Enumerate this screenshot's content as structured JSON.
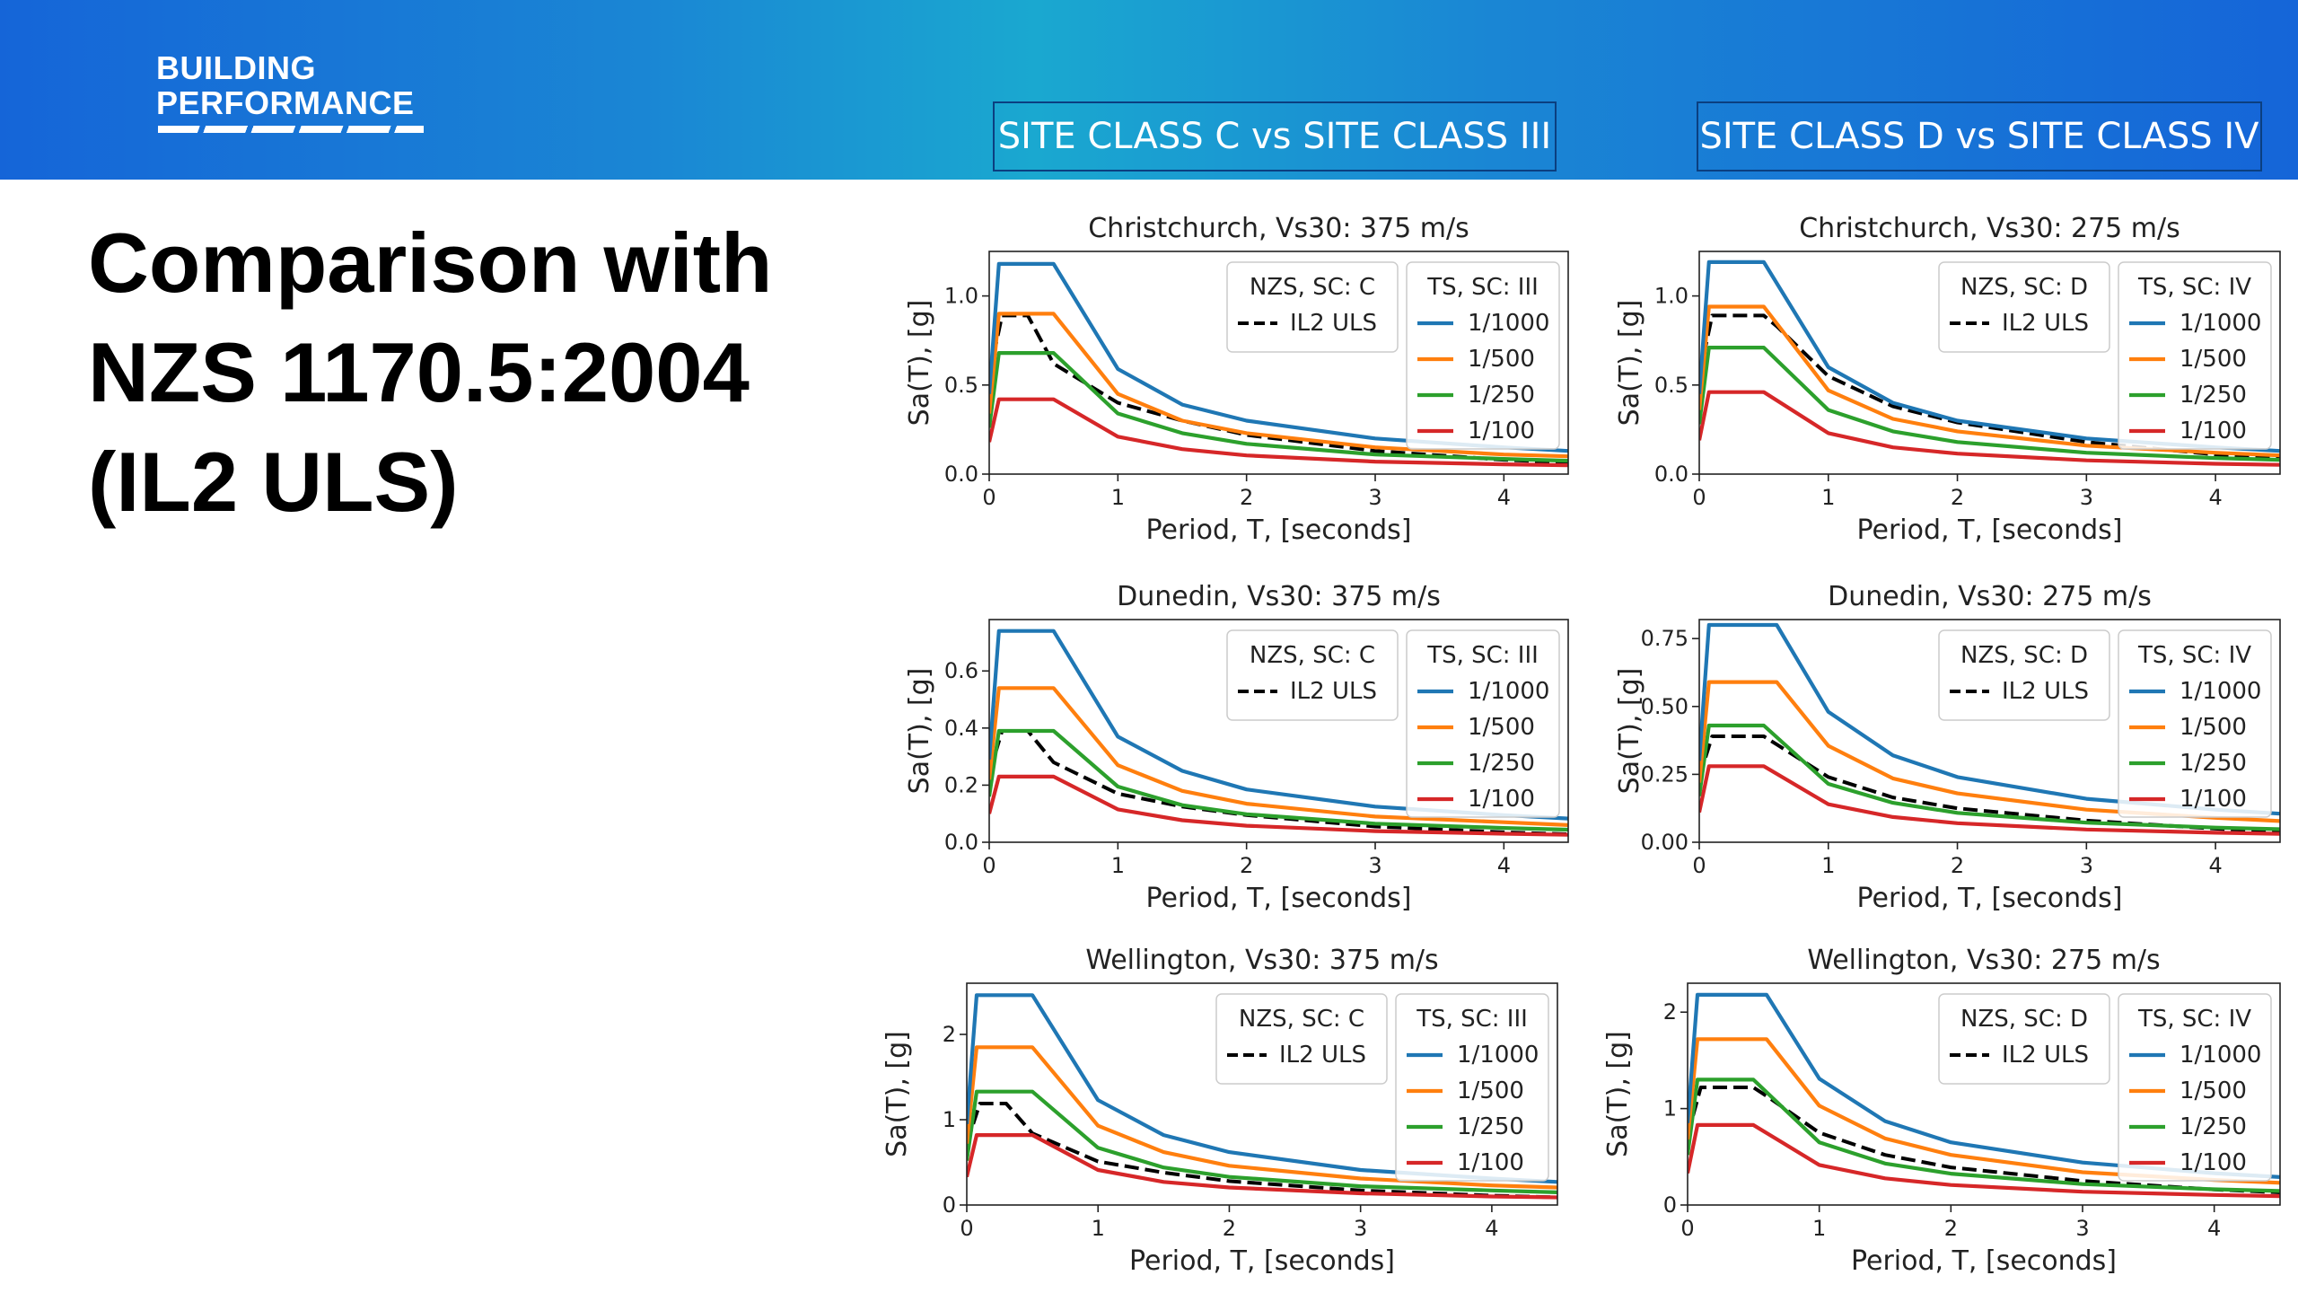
{
  "header": {
    "logo_line1": "BUILDING",
    "logo_line2": "PERFORMANCE",
    "site_class_left": "SITE CLASS C vs SITE CLASS III",
    "site_class_right": "SITE CLASS D vs SITE CLASS IV"
  },
  "headline": {
    "line1": "Comparison with",
    "line2": "NZS 1170.5:2004",
    "line3": "(IL2 ULS)"
  },
  "colors": {
    "banner": "#1a86d4",
    "s1000": "#1f77b4",
    "s500": "#ff7f0e",
    "s250": "#2ca02c",
    "s100": "#d62728",
    "nzs": "#000000"
  },
  "chart_data": [
    {
      "type": "line",
      "title": "Christchurch, Vs30: 375 m/s",
      "xlabel": "Period, T, [seconds]",
      "ylabel": "Sa(T), [g]",
      "xlim": [
        0,
        4.5
      ],
      "ylim": [
        0,
        1.25
      ],
      "xticks": [
        "0",
        "1",
        "2",
        "3",
        "4"
      ],
      "xtick_values": [
        0,
        1,
        2,
        3,
        4
      ],
      "yticks": [
        "0.0",
        "0.5",
        "1.0"
      ],
      "ytick_values": [
        0,
        0.5,
        1.0
      ],
      "legend_nzs_title": "NZS, SC: C",
      "legend_nzs_entry": "IL2 ULS",
      "legend_ts_title": "TS, SC: III",
      "series": [
        {
          "name": "1/1000",
          "x": [
            0,
            0.075,
            0.5,
            1,
            1.5,
            2,
            3,
            4,
            4.5
          ],
          "values": [
            0.45,
            1.18,
            1.18,
            0.59,
            0.39,
            0.3,
            0.2,
            0.15,
            0.13
          ]
        },
        {
          "name": "1/500",
          "x": [
            0,
            0.075,
            0.5,
            1,
            1.5,
            2,
            3,
            4,
            4.5
          ],
          "values": [
            0.34,
            0.9,
            0.9,
            0.45,
            0.3,
            0.23,
            0.15,
            0.11,
            0.1
          ]
        },
        {
          "name": "1/250",
          "x": [
            0,
            0.075,
            0.5,
            1,
            1.5,
            2,
            3,
            4,
            4.5
          ],
          "values": [
            0.26,
            0.68,
            0.68,
            0.34,
            0.23,
            0.17,
            0.11,
            0.085,
            0.075
          ]
        },
        {
          "name": "1/100",
          "x": [
            0,
            0.075,
            0.5,
            1,
            1.5,
            2,
            3,
            4,
            4.5
          ],
          "values": [
            0.18,
            0.42,
            0.42,
            0.21,
            0.14,
            0.105,
            0.07,
            0.055,
            0.05
          ]
        },
        {
          "name": "IL2 ULS",
          "x": [
            0,
            0.1,
            0.3,
            0.5,
            1,
            1.5,
            2,
            3,
            4,
            4.5
          ],
          "values": [
            0.55,
            0.89,
            0.89,
            0.62,
            0.4,
            0.3,
            0.22,
            0.13,
            0.08,
            0.065
          ]
        }
      ]
    },
    {
      "type": "line",
      "title": "Christchurch, Vs30: 275 m/s",
      "xlabel": "Period, T, [seconds]",
      "ylabel": "Sa(T), [g]",
      "xlim": [
        0,
        4.5
      ],
      "ylim": [
        0,
        1.25
      ],
      "xticks": [
        "0",
        "1",
        "2",
        "3",
        "4"
      ],
      "xtick_values": [
        0,
        1,
        2,
        3,
        4
      ],
      "yticks": [
        "0.0",
        "0.5",
        "1.0"
      ],
      "ytick_values": [
        0,
        0.5,
        1.0
      ],
      "legend_nzs_title": "NZS, SC: D",
      "legend_nzs_entry": "IL2 ULS",
      "legend_ts_title": "TS, SC: IV",
      "series": [
        {
          "name": "1/1000",
          "x": [
            0,
            0.075,
            0.5,
            1,
            1.5,
            2,
            3,
            4,
            4.5
          ],
          "values": [
            0.45,
            1.19,
            1.19,
            0.6,
            0.4,
            0.3,
            0.2,
            0.15,
            0.13
          ]
        },
        {
          "name": "1/500",
          "x": [
            0,
            0.075,
            0.5,
            1,
            1.5,
            2,
            3,
            4,
            4.5
          ],
          "values": [
            0.36,
            0.94,
            0.94,
            0.47,
            0.31,
            0.24,
            0.16,
            0.12,
            0.105
          ]
        },
        {
          "name": "1/250",
          "x": [
            0,
            0.075,
            0.5,
            1,
            1.5,
            2,
            3,
            4,
            4.5
          ],
          "values": [
            0.28,
            0.71,
            0.71,
            0.36,
            0.24,
            0.18,
            0.12,
            0.09,
            0.08
          ]
        },
        {
          "name": "1/100",
          "x": [
            0,
            0.075,
            0.5,
            1,
            1.5,
            2,
            3,
            4,
            4.5
          ],
          "values": [
            0.19,
            0.46,
            0.46,
            0.23,
            0.15,
            0.115,
            0.077,
            0.058,
            0.052
          ]
        },
        {
          "name": "IL2 ULS",
          "x": [
            0,
            0.1,
            0.5,
            0.6,
            1,
            1.5,
            2,
            3,
            4,
            4.5
          ],
          "values": [
            0.55,
            0.89,
            0.89,
            0.83,
            0.55,
            0.38,
            0.29,
            0.18,
            0.11,
            0.09
          ]
        }
      ]
    },
    {
      "type": "line",
      "title": "Dunedin, Vs30: 375 m/s",
      "xlabel": "Period, T, [seconds]",
      "ylabel": "Sa(T), [g]",
      "xlim": [
        0,
        4.5
      ],
      "ylim": [
        0,
        0.78
      ],
      "xticks": [
        "0",
        "1",
        "2",
        "3",
        "4"
      ],
      "xtick_values": [
        0,
        1,
        2,
        3,
        4
      ],
      "yticks": [
        "0.0",
        "0.2",
        "0.4",
        "0.6"
      ],
      "ytick_values": [
        0,
        0.2,
        0.4,
        0.6
      ],
      "legend_nzs_title": "NZS, SC: C",
      "legend_nzs_entry": "IL2 ULS",
      "legend_ts_title": "TS, SC: III",
      "series": [
        {
          "name": "1/1000",
          "x": [
            0,
            0.075,
            0.5,
            1,
            1.5,
            2,
            3,
            4,
            4.5
          ],
          "values": [
            0.29,
            0.74,
            0.74,
            0.37,
            0.25,
            0.185,
            0.125,
            0.095,
            0.083
          ]
        },
        {
          "name": "1/500",
          "x": [
            0,
            0.075,
            0.5,
            1,
            1.5,
            2,
            3,
            4,
            4.5
          ],
          "values": [
            0.22,
            0.54,
            0.54,
            0.27,
            0.18,
            0.135,
            0.09,
            0.07,
            0.06
          ]
        },
        {
          "name": "1/250",
          "x": [
            0,
            0.075,
            0.5,
            1,
            1.5,
            2,
            3,
            4,
            4.5
          ],
          "values": [
            0.16,
            0.39,
            0.39,
            0.195,
            0.13,
            0.098,
            0.065,
            0.05,
            0.044
          ]
        },
        {
          "name": "1/100",
          "x": [
            0,
            0.075,
            0.5,
            1,
            1.5,
            2,
            3,
            4,
            4.5
          ],
          "values": [
            0.1,
            0.23,
            0.23,
            0.115,
            0.077,
            0.058,
            0.039,
            0.03,
            0.026
          ]
        },
        {
          "name": "IL2 ULS",
          "x": [
            0,
            0.1,
            0.3,
            0.5,
            1,
            1.5,
            2,
            3,
            4,
            4.5
          ],
          "values": [
            0.24,
            0.39,
            0.39,
            0.28,
            0.17,
            0.125,
            0.095,
            0.055,
            0.035,
            0.028
          ]
        }
      ]
    },
    {
      "type": "line",
      "title": "Dunedin, Vs30: 275 m/s",
      "xlabel": "Period, T, [seconds]",
      "ylabel": "Sa(T), [g]",
      "xlim": [
        0,
        4.5
      ],
      "ylim": [
        0,
        0.82
      ],
      "xticks": [
        "0",
        "1",
        "2",
        "3",
        "4"
      ],
      "xtick_values": [
        0,
        1,
        2,
        3,
        4
      ],
      "yticks": [
        "0.00",
        "0.25",
        "0.50",
        "0.75"
      ],
      "ytick_values": [
        0,
        0.25,
        0.5,
        0.75
      ],
      "legend_nzs_title": "NZS, SC: D",
      "legend_nzs_entry": "IL2 ULS",
      "legend_ts_title": "TS, SC: IV",
      "series": [
        {
          "name": "1/1000",
          "x": [
            0,
            0.075,
            0.6,
            1,
            1.5,
            2,
            3,
            4,
            4.5
          ],
          "values": [
            0.3,
            0.8,
            0.8,
            0.48,
            0.32,
            0.24,
            0.16,
            0.12,
            0.105
          ]
        },
        {
          "name": "1/500",
          "x": [
            0,
            0.075,
            0.6,
            1,
            1.5,
            2,
            3,
            4,
            4.5
          ],
          "values": [
            0.22,
            0.59,
            0.59,
            0.355,
            0.235,
            0.18,
            0.12,
            0.09,
            0.078
          ]
        },
        {
          "name": "1/250",
          "x": [
            0,
            0.075,
            0.5,
            1,
            1.5,
            2,
            3,
            4,
            4.5
          ],
          "values": [
            0.17,
            0.43,
            0.43,
            0.215,
            0.145,
            0.108,
            0.072,
            0.054,
            0.048
          ]
        },
        {
          "name": "1/100",
          "x": [
            0,
            0.075,
            0.5,
            1,
            1.5,
            2,
            3,
            4,
            4.5
          ],
          "values": [
            0.11,
            0.28,
            0.28,
            0.14,
            0.093,
            0.07,
            0.047,
            0.035,
            0.031
          ]
        },
        {
          "name": "IL2 ULS",
          "x": [
            0,
            0.1,
            0.5,
            0.6,
            1,
            1.5,
            2,
            3,
            4,
            4.5
          ],
          "values": [
            0.24,
            0.39,
            0.39,
            0.36,
            0.24,
            0.165,
            0.125,
            0.08,
            0.05,
            0.04
          ]
        }
      ]
    },
    {
      "type": "line",
      "title": "Wellington, Vs30: 375 m/s",
      "xlabel": "Period, T, [seconds]",
      "ylabel": "Sa(T), [g]",
      "xlim": [
        0,
        4.5
      ],
      "ylim": [
        0,
        2.6
      ],
      "xticks": [
        "0",
        "1",
        "2",
        "3",
        "4"
      ],
      "xtick_values": [
        0,
        1,
        2,
        3,
        4
      ],
      "yticks": [
        "0",
        "1",
        "2"
      ],
      "ytick_values": [
        0,
        1,
        2
      ],
      "legend_nzs_title": "NZS, SC: C",
      "legend_nzs_entry": "IL2 ULS",
      "legend_ts_title": "TS, SC: III",
      "series": [
        {
          "name": "1/1000",
          "x": [
            0,
            0.075,
            0.5,
            1,
            1.5,
            2,
            3,
            4,
            4.5
          ],
          "values": [
            0.95,
            2.46,
            2.46,
            1.23,
            0.82,
            0.62,
            0.41,
            0.31,
            0.27
          ]
        },
        {
          "name": "1/500",
          "x": [
            0,
            0.075,
            0.5,
            1,
            1.5,
            2,
            3,
            4,
            4.5
          ],
          "values": [
            0.72,
            1.85,
            1.85,
            0.93,
            0.62,
            0.46,
            0.31,
            0.23,
            0.205
          ]
        },
        {
          "name": "1/250",
          "x": [
            0,
            0.075,
            0.5,
            1,
            1.5,
            2,
            3,
            4,
            4.5
          ],
          "values": [
            0.52,
            1.33,
            1.33,
            0.67,
            0.44,
            0.33,
            0.22,
            0.17,
            0.148
          ]
        },
        {
          "name": "1/100",
          "x": [
            0,
            0.075,
            0.5,
            1,
            1.5,
            2,
            3,
            4,
            4.5
          ],
          "values": [
            0.33,
            0.82,
            0.82,
            0.41,
            0.27,
            0.205,
            0.137,
            0.1,
            0.09
          ]
        },
        {
          "name": "IL2 ULS",
          "x": [
            0,
            0.1,
            0.3,
            0.5,
            1,
            1.5,
            2,
            3,
            4,
            4.5
          ],
          "values": [
            0.72,
            1.19,
            1.19,
            0.84,
            0.51,
            0.38,
            0.28,
            0.17,
            0.11,
            0.09
          ]
        }
      ]
    },
    {
      "type": "line",
      "title": "Wellington, Vs30: 275 m/s",
      "xlabel": "Period, T, [seconds]",
      "ylabel": "Sa(T), [g]",
      "xlim": [
        0,
        4.5
      ],
      "ylim": [
        0,
        2.3
      ],
      "xticks": [
        "0",
        "1",
        "2",
        "3",
        "4"
      ],
      "xtick_values": [
        0,
        1,
        2,
        3,
        4
      ],
      "yticks": [
        "0",
        "1",
        "2"
      ],
      "ytick_values": [
        0,
        1,
        2
      ],
      "legend_nzs_title": "NZS, SC: D",
      "legend_nzs_entry": "IL2 ULS",
      "legend_ts_title": "TS, SC: IV",
      "series": [
        {
          "name": "1/1000",
          "x": [
            0,
            0.075,
            0.6,
            1,
            1.5,
            2,
            3,
            4,
            4.5
          ],
          "values": [
            0.85,
            2.18,
            2.18,
            1.31,
            0.87,
            0.65,
            0.44,
            0.33,
            0.29
          ]
        },
        {
          "name": "1/500",
          "x": [
            0,
            0.075,
            0.6,
            1,
            1.5,
            2,
            3,
            4,
            4.5
          ],
          "values": [
            0.68,
            1.72,
            1.72,
            1.03,
            0.69,
            0.52,
            0.34,
            0.26,
            0.23
          ]
        },
        {
          "name": "1/250",
          "x": [
            0,
            0.075,
            0.5,
            1,
            1.5,
            2,
            3,
            4,
            4.5
          ],
          "values": [
            0.52,
            1.3,
            1.3,
            0.65,
            0.43,
            0.325,
            0.217,
            0.163,
            0.145
          ]
        },
        {
          "name": "1/100",
          "x": [
            0,
            0.075,
            0.5,
            1,
            1.5,
            2,
            3,
            4,
            4.5
          ],
          "values": [
            0.33,
            0.83,
            0.83,
            0.415,
            0.277,
            0.208,
            0.138,
            0.104,
            0.092
          ]
        },
        {
          "name": "IL2 ULS",
          "x": [
            0,
            0.1,
            0.5,
            0.6,
            1,
            1.5,
            2,
            3,
            4,
            4.5
          ],
          "values": [
            0.72,
            1.22,
            1.22,
            1.13,
            0.75,
            0.52,
            0.39,
            0.25,
            0.16,
            0.13
          ]
        }
      ]
    }
  ]
}
